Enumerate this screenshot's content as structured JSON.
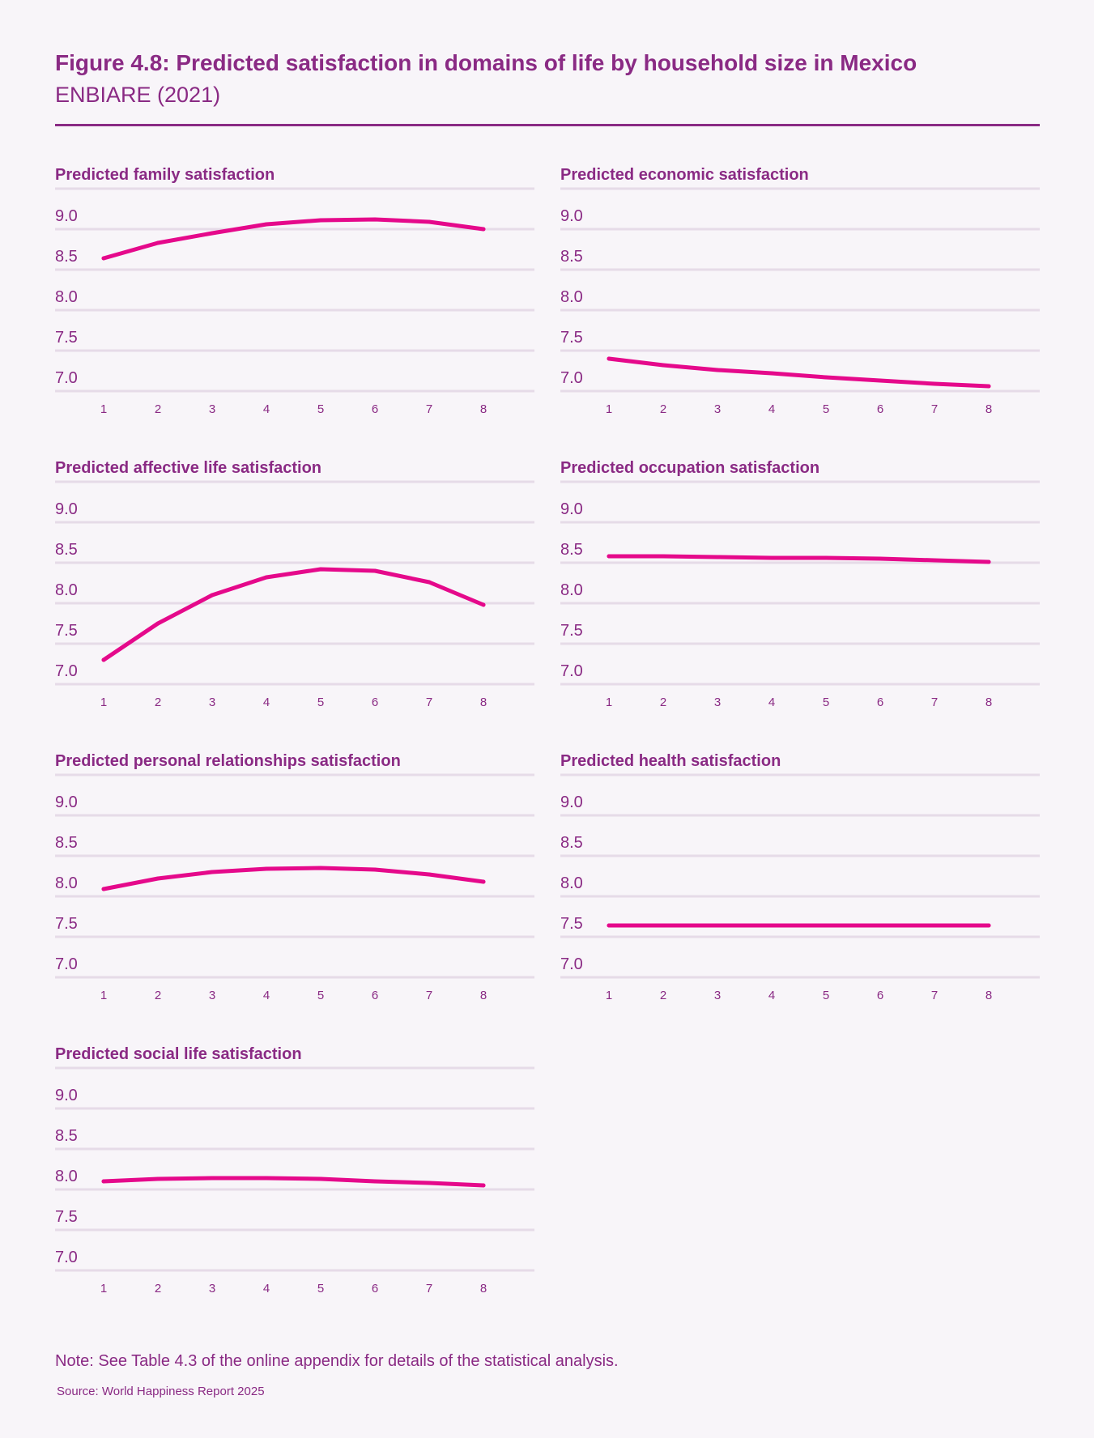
{
  "header": {
    "title": "Figure 4.8: Predicted satisfaction in domains of life by household size in Mexico",
    "subtitle": "ENBIARE (2021)"
  },
  "footer": {
    "note": "Note: See Table 4.3 of the online appendix for details of the statistical analysis.",
    "source": "Source: World Happiness Report 2025"
  },
  "colors": {
    "line": "#e5098b",
    "text": "#8a2a84",
    "grid": "#e6dbe8",
    "background": "#f8f5f9"
  },
  "chart_data": [
    {
      "type": "line",
      "title": "Predicted family satisfaction",
      "x": [
        1,
        2,
        3,
        4,
        5,
        6,
        7,
        8
      ],
      "y": [
        8.64,
        8.83,
        8.95,
        9.06,
        9.11,
        9.12,
        9.09,
        9.0
      ],
      "ylim": [
        7.0,
        9.0
      ],
      "yticks": [
        "9.0",
        "8.5",
        "8.0",
        "7.5",
        "7.0"
      ],
      "xticks": [
        "1",
        "2",
        "3",
        "4",
        "5",
        "6",
        "7",
        "8"
      ],
      "grid": true
    },
    {
      "type": "line",
      "title": "Predicted economic satisfaction",
      "x": [
        1,
        2,
        3,
        4,
        5,
        6,
        7,
        8
      ],
      "y": [
        7.4,
        7.32,
        7.26,
        7.22,
        7.17,
        7.13,
        7.09,
        7.06
      ],
      "ylim": [
        7.0,
        9.0
      ],
      "yticks": [
        "9.0",
        "8.5",
        "8.0",
        "7.5",
        "7.0"
      ],
      "xticks": [
        "1",
        "2",
        "3",
        "4",
        "5",
        "6",
        "7",
        "8"
      ],
      "grid": true
    },
    {
      "type": "line",
      "title": "Predicted affective life satisfaction",
      "x": [
        1,
        2,
        3,
        4,
        5,
        6,
        7,
        8
      ],
      "y": [
        7.3,
        7.75,
        8.1,
        8.32,
        8.42,
        8.4,
        8.26,
        7.98
      ],
      "ylim": [
        7.0,
        9.0
      ],
      "yticks": [
        "9.0",
        "8.5",
        "8.0",
        "7.5",
        "7.0"
      ],
      "xticks": [
        "1",
        "2",
        "3",
        "4",
        "5",
        "6",
        "7",
        "8"
      ],
      "grid": true
    },
    {
      "type": "line",
      "title": "Predicted occupation satisfaction",
      "x": [
        1,
        2,
        3,
        4,
        5,
        6,
        7,
        8
      ],
      "y": [
        8.58,
        8.58,
        8.57,
        8.56,
        8.56,
        8.55,
        8.53,
        8.51
      ],
      "ylim": [
        7.0,
        9.0
      ],
      "yticks": [
        "9.0",
        "8.5",
        "8.0",
        "7.5",
        "7.0"
      ],
      "xticks": [
        "1",
        "2",
        "3",
        "4",
        "5",
        "6",
        "7",
        "8"
      ],
      "grid": true
    },
    {
      "type": "line",
      "title": "Predicted personal relationships satisfaction",
      "x": [
        1,
        2,
        3,
        4,
        5,
        6,
        7,
        8
      ],
      "y": [
        8.09,
        8.22,
        8.3,
        8.34,
        8.35,
        8.33,
        8.27,
        8.18
      ],
      "ylim": [
        7.0,
        9.0
      ],
      "yticks": [
        "9.0",
        "8.5",
        "8.0",
        "7.5",
        "7.0"
      ],
      "xticks": [
        "1",
        "2",
        "3",
        "4",
        "5",
        "6",
        "7",
        "8"
      ],
      "grid": true
    },
    {
      "type": "line",
      "title": "Predicted health satisfaction",
      "x": [
        1,
        2,
        3,
        4,
        5,
        6,
        7,
        8
      ],
      "y": [
        7.64,
        7.64,
        7.64,
        7.64,
        7.64,
        7.64,
        7.64,
        7.64
      ],
      "ylim": [
        7.0,
        9.0
      ],
      "yticks": [
        "9.0",
        "8.5",
        "8.0",
        "7.5",
        "7.0"
      ],
      "xticks": [
        "1",
        "2",
        "3",
        "4",
        "5",
        "6",
        "7",
        "8"
      ],
      "grid": true
    },
    {
      "type": "line",
      "title": "Predicted social life satisfaction",
      "x": [
        1,
        2,
        3,
        4,
        5,
        6,
        7,
        8
      ],
      "y": [
        8.1,
        8.13,
        8.14,
        8.14,
        8.13,
        8.1,
        8.08,
        8.05
      ],
      "ylim": [
        7.0,
        9.0
      ],
      "yticks": [
        "9.0",
        "8.5",
        "8.0",
        "7.5",
        "7.0"
      ],
      "xticks": [
        "1",
        "2",
        "3",
        "4",
        "5",
        "6",
        "7",
        "8"
      ],
      "grid": true
    }
  ]
}
